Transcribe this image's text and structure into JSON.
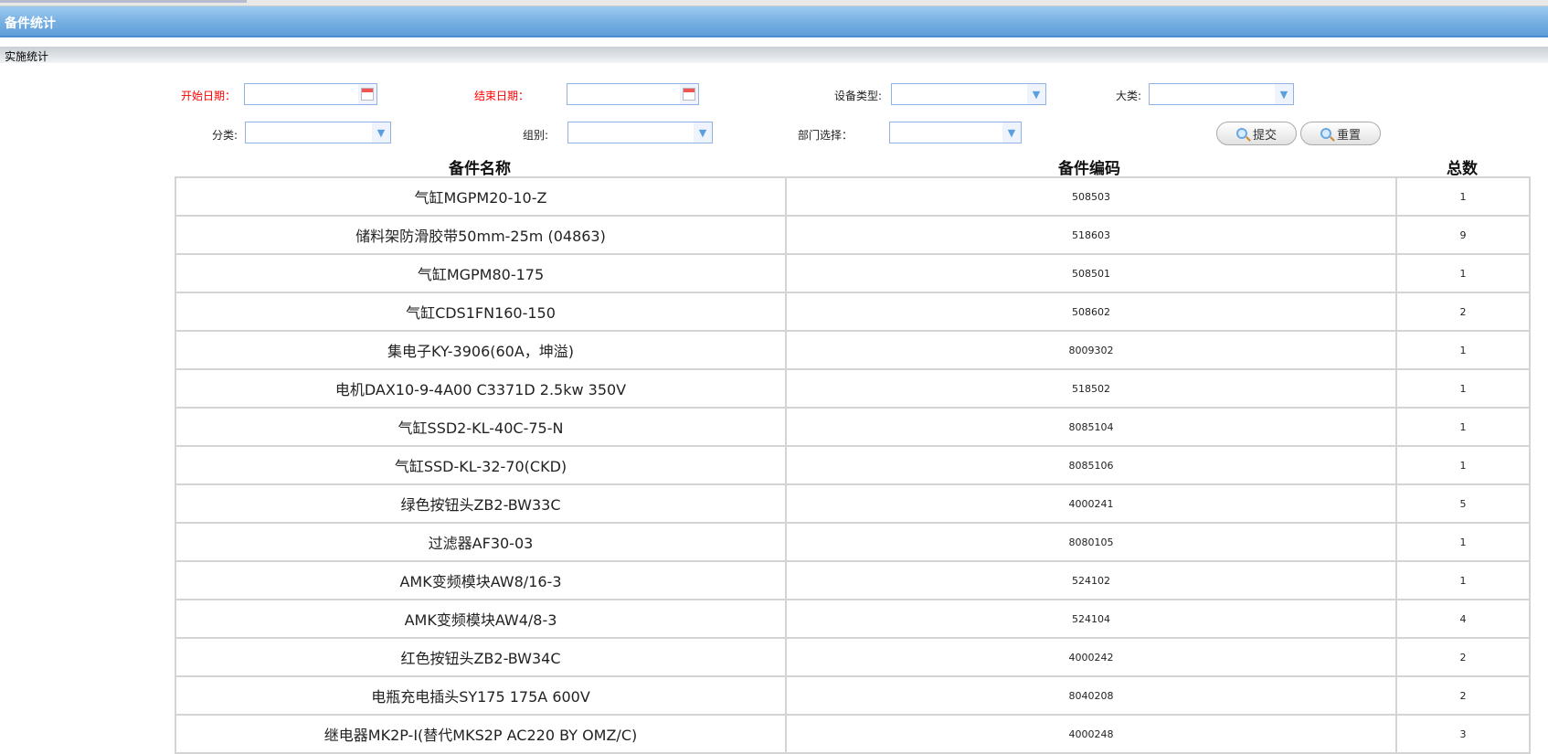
{
  "header": {
    "title": "备件统计",
    "subtitle": "实施统计"
  },
  "filters": {
    "start_date": {
      "label": "开始日期：",
      "value": ""
    },
    "end_date": {
      "label": "结束日期：",
      "value": ""
    },
    "device_type": {
      "label": "设备类型:",
      "value": ""
    },
    "major_category": {
      "label": "大类:",
      "value": ""
    },
    "category": {
      "label": "分类:",
      "value": ""
    },
    "group": {
      "label": "组别:",
      "value": ""
    },
    "department": {
      "label": "部门选择：",
      "value": ""
    },
    "submit_label": "提交",
    "reset_label": "重置"
  },
  "table": {
    "columns": [
      "备件名称",
      "备件编码",
      "总数"
    ],
    "rows": [
      {
        "name": "气缸MGPM20-10-Z",
        "code": "508503",
        "count": "1"
      },
      {
        "name": "储料架防滑胶带50mm-25m (04863)",
        "code": "518603",
        "count": "9"
      },
      {
        "name": "气缸MGPM80-175",
        "code": "508501",
        "count": "1"
      },
      {
        "name": "气缸CDS1FN160-150",
        "code": "508602",
        "count": "2"
      },
      {
        "name": "集电子KY-3906(60A，坤溢)",
        "code": "8009302",
        "count": "1"
      },
      {
        "name": "电机DAX10-9-4A00 C3371D 2.5kw 350V",
        "code": "518502",
        "count": "1"
      },
      {
        "name": "气缸SSD2-KL-40C-75-N",
        "code": "8085104",
        "count": "1"
      },
      {
        "name": "气缸SSD-KL-32-70(CKD)",
        "code": "8085106",
        "count": "1"
      },
      {
        "name": "绿色按钮头ZB2-BW33C",
        "code": "4000241",
        "count": "5"
      },
      {
        "name": "过滤器AF30-03",
        "code": "8080105",
        "count": "1"
      },
      {
        "name": "AMK变频模块AW8/16-3",
        "code": "524102",
        "count": "1"
      },
      {
        "name": "AMK变频模块AW4/8-3",
        "code": "524104",
        "count": "4"
      },
      {
        "name": "红色按钮头ZB2-BW34C",
        "code": "4000242",
        "count": "2"
      },
      {
        "name": "电瓶充电插头SY175 175A 600V",
        "code": "8040208",
        "count": "2"
      },
      {
        "name": "继电器MK2P-I(替代MKS2P AC220 BY OMZ/C)",
        "code": "4000248",
        "count": "3"
      }
    ]
  }
}
